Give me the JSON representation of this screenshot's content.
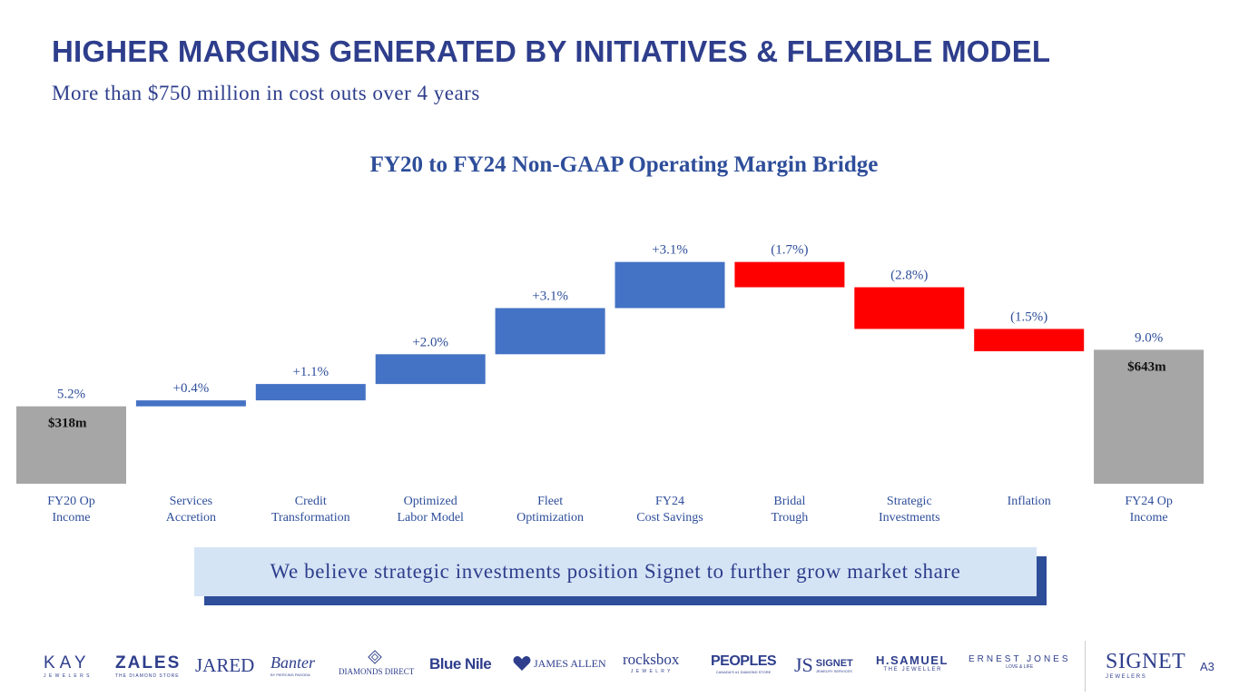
{
  "header": {
    "title": "HIGHER MARGINS GENERATED BY INITIATIVES & FLEXIBLE MODEL",
    "subtitle": "More than $750 million in cost outs over 4 years"
  },
  "colors": {
    "total": "#A6A6A6",
    "increase": "#4472C4",
    "decrease": "#FF0000",
    "title": "#2E3E8C",
    "label": "#2E4E9A"
  },
  "chart_data": {
    "type": "bar",
    "subtype": "waterfall",
    "title": "FY20 to FY24 Non-GAAP Operating Margin Bridge",
    "categories": [
      [
        "FY20 Op",
        "Income"
      ],
      [
        "Services",
        "Accretion"
      ],
      [
        "Credit",
        "Transformation"
      ],
      [
        "Optimized",
        "Labor Model"
      ],
      [
        "Fleet",
        "Optimization"
      ],
      [
        "FY24",
        "Cost Savings"
      ],
      [
        "Bridal",
        "Trough"
      ],
      [
        "Strategic",
        "Investments"
      ],
      [
        "Inflation"
      ],
      [
        "FY24 Op",
        "Income"
      ]
    ],
    "values": [
      5.2,
      0.4,
      1.1,
      2.0,
      3.1,
      3.1,
      -1.7,
      -2.8,
      -1.5,
      9.0
    ],
    "kinds": [
      "total",
      "increase",
      "increase",
      "increase",
      "increase",
      "increase",
      "decrease",
      "decrease",
      "decrease",
      "total"
    ],
    "value_labels": [
      "5.2%",
      "+0.4%",
      "+1.1%",
      "+2.0%",
      "+3.1%",
      "+3.1%",
      "(1.7%)",
      "(2.8%)",
      "(1.5%)",
      "9.0%"
    ],
    "inner_labels": [
      "$318m",
      "",
      "",
      "",
      "",
      "",
      "",
      "",
      "",
      "$643m"
    ],
    "ylim": [
      0,
      17
    ],
    "grid": false,
    "legend": "none"
  },
  "callout": {
    "text": "We believe strategic investments position Signet to further grow market share"
  },
  "brands": [
    "KAY",
    "ZALES",
    "JARED",
    "Banter",
    "DIAMONDS DIRECT",
    "Blue Nile",
    "JAMES ALLEN",
    "rocksbox",
    "PEOPLES",
    "SIGNET",
    "H.SAMUEL",
    "ERNEST JONES"
  ],
  "brand_sub": {
    "kay": "J E W E L E R S",
    "zales": "THE DIAMOND STORE",
    "banter": "BY PIERCING PAGODA",
    "rocksbox": "J E W E L R Y",
    "peoples": "CANADA'S #1 DIAMOND STORE",
    "signet_services": "JEWELRY SERVICES",
    "hsamuel": "T H E   J E W E L L E R",
    "ernest": "LOVE & LIFE"
  },
  "footer": {
    "signet_logo": "SIGNET",
    "signet_sub": "J E W E L E R S",
    "page_number": "A3"
  }
}
